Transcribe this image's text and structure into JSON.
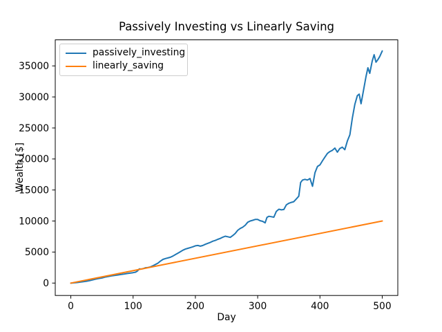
{
  "figure": {
    "background": "#ffffff",
    "axes_background": "#ffffff",
    "spine_color": "#000000"
  },
  "chart_data": {
    "type": "line",
    "title": "Passively Investing vs Linearly Saving",
    "xlabel": "Day",
    "ylabel": "Wealth [$]",
    "xlim": [
      -25,
      525
    ],
    "ylim": [
      -2000,
      39200
    ],
    "xticks": [
      0,
      100,
      200,
      300,
      400,
      500
    ],
    "yticks": [
      0,
      5000,
      10000,
      15000,
      20000,
      25000,
      30000,
      35000
    ],
    "grid": false,
    "legend_position": "upper left",
    "series": [
      {
        "name": "passively_investing",
        "color": "#1f77b4",
        "points": [
          [
            0,
            -20
          ],
          [
            5,
            40
          ],
          [
            10,
            90
          ],
          [
            15,
            150
          ],
          [
            20,
            230
          ],
          [
            25,
            300
          ],
          [
            30,
            390
          ],
          [
            35,
            520
          ],
          [
            40,
            640
          ],
          [
            45,
            740
          ],
          [
            50,
            820
          ],
          [
            55,
            950
          ],
          [
            60,
            1050
          ],
          [
            65,
            1150
          ],
          [
            70,
            1230
          ],
          [
            75,
            1300
          ],
          [
            80,
            1380
          ],
          [
            85,
            1450
          ],
          [
            90,
            1530
          ],
          [
            95,
            1600
          ],
          [
            100,
            1680
          ],
          [
            104,
            1760
          ],
          [
            107,
            1950
          ],
          [
            110,
            2280
          ],
          [
            113,
            2260
          ],
          [
            116,
            2330
          ],
          [
            120,
            2470
          ],
          [
            124,
            2520
          ],
          [
            128,
            2620
          ],
          [
            132,
            2800
          ],
          [
            136,
            3000
          ],
          [
            140,
            3220
          ],
          [
            144,
            3550
          ],
          [
            148,
            3820
          ],
          [
            152,
            3950
          ],
          [
            156,
            4050
          ],
          [
            160,
            4160
          ],
          [
            164,
            4350
          ],
          [
            168,
            4600
          ],
          [
            172,
            4820
          ],
          [
            176,
            5060
          ],
          [
            180,
            5300
          ],
          [
            184,
            5480
          ],
          [
            188,
            5600
          ],
          [
            192,
            5720
          ],
          [
            196,
            5850
          ],
          [
            200,
            6000
          ],
          [
            204,
            6060
          ],
          [
            208,
            5950
          ],
          [
            212,
            6060
          ],
          [
            216,
            6250
          ],
          [
            220,
            6400
          ],
          [
            224,
            6560
          ],
          [
            228,
            6750
          ],
          [
            232,
            6870
          ],
          [
            236,
            7050
          ],
          [
            240,
            7200
          ],
          [
            244,
            7400
          ],
          [
            248,
            7550
          ],
          [
            252,
            7460
          ],
          [
            256,
            7360
          ],
          [
            260,
            7650
          ],
          [
            264,
            8000
          ],
          [
            268,
            8500
          ],
          [
            272,
            8800
          ],
          [
            276,
            9000
          ],
          [
            280,
            9320
          ],
          [
            284,
            9800
          ],
          [
            288,
            10000
          ],
          [
            292,
            10120
          ],
          [
            296,
            10250
          ],
          [
            300,
            10250
          ],
          [
            304,
            10050
          ],
          [
            308,
            9950
          ],
          [
            312,
            9700
          ],
          [
            315,
            10600
          ],
          [
            318,
            10760
          ],
          [
            322,
            10700
          ],
          [
            326,
            10620
          ],
          [
            330,
            11550
          ],
          [
            334,
            11900
          ],
          [
            338,
            11800
          ],
          [
            342,
            11860
          ],
          [
            346,
            12600
          ],
          [
            350,
            12860
          ],
          [
            354,
            13000
          ],
          [
            358,
            13120
          ],
          [
            362,
            13550
          ],
          [
            366,
            14000
          ],
          [
            369,
            16200
          ],
          [
            372,
            16600
          ],
          [
            376,
            16720
          ],
          [
            380,
            16600
          ],
          [
            384,
            16850
          ],
          [
            388,
            15600
          ],
          [
            392,
            17800
          ],
          [
            396,
            18800
          ],
          [
            400,
            19050
          ],
          [
            404,
            19700
          ],
          [
            408,
            20300
          ],
          [
            412,
            20900
          ],
          [
            416,
            21200
          ],
          [
            420,
            21400
          ],
          [
            424,
            21750
          ],
          [
            428,
            21100
          ],
          [
            432,
            21700
          ],
          [
            436,
            21900
          ],
          [
            440,
            21500
          ],
          [
            444,
            22900
          ],
          [
            448,
            23900
          ],
          [
            452,
            26600
          ],
          [
            456,
            28800
          ],
          [
            460,
            30200
          ],
          [
            463,
            30450
          ],
          [
            466,
            28900
          ],
          [
            470,
            31100
          ],
          [
            474,
            33300
          ],
          [
            477,
            34700
          ],
          [
            480,
            33800
          ],
          [
            484,
            35800
          ],
          [
            487,
            36800
          ],
          [
            490,
            35600
          ],
          [
            493,
            36000
          ],
          [
            496,
            36500
          ],
          [
            500,
            37400
          ]
        ]
      },
      {
        "name": "linearly_saving",
        "color": "#ff7f0e",
        "points": [
          [
            0,
            0
          ],
          [
            500,
            10000
          ]
        ]
      }
    ]
  }
}
